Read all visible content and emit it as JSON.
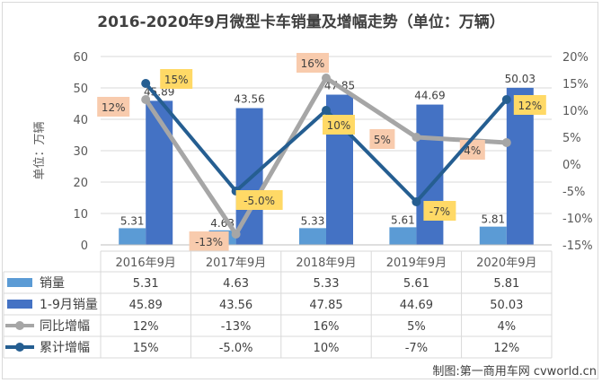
{
  "chart_data": {
    "type": "bar",
    "title": "2016-2020年9月微型卡车销量及增幅走势（单位：万辆）",
    "ylabel": "单位：万辆",
    "categories": [
      "2016年9月",
      "2017年9月",
      "2018年9月",
      "2019年9月",
      "2020年9月"
    ],
    "ylim": [
      0,
      60
    ],
    "yticks": [
      0,
      10,
      20,
      30,
      40,
      50,
      60
    ],
    "y2lim": [
      -15,
      20
    ],
    "y2ticks": [
      "-15%",
      "-10%",
      "-5%",
      "0%",
      "5%",
      "10%",
      "15%",
      "20%"
    ],
    "grid": true,
    "legend": "table-below",
    "series": [
      {
        "name": "销量",
        "type": "bar",
        "axis": "left",
        "color": "#5b9bd5",
        "values": [
          5.31,
          4.63,
          5.33,
          5.61,
          5.81
        ],
        "labels": [
          "5.31",
          "4.63",
          "5.33",
          "5.61",
          "5.81"
        ]
      },
      {
        "name": "1-9月销量",
        "type": "bar",
        "axis": "left",
        "color": "#4472c4",
        "values": [
          45.89,
          43.56,
          47.85,
          44.69,
          50.03
        ],
        "labels": [
          "45.89",
          "43.56",
          "47.85",
          "44.69",
          "50.03"
        ]
      },
      {
        "name": "同比增幅",
        "type": "line",
        "axis": "right",
        "color": "#a6a6a6",
        "values": [
          12,
          -13,
          16,
          5,
          4
        ],
        "labels": [
          "12%",
          "-13%",
          "16%",
          "5%",
          "4%"
        ]
      },
      {
        "name": "累计增幅",
        "type": "line",
        "axis": "right",
        "color": "#255e91",
        "values": [
          15,
          -5,
          10,
          -7,
          12
        ],
        "labels": [
          "15%",
          "-5.0%",
          "10%",
          "-7%",
          "12%"
        ]
      }
    ]
  },
  "credit": "制图:第一商用车网 cvworld.cn"
}
